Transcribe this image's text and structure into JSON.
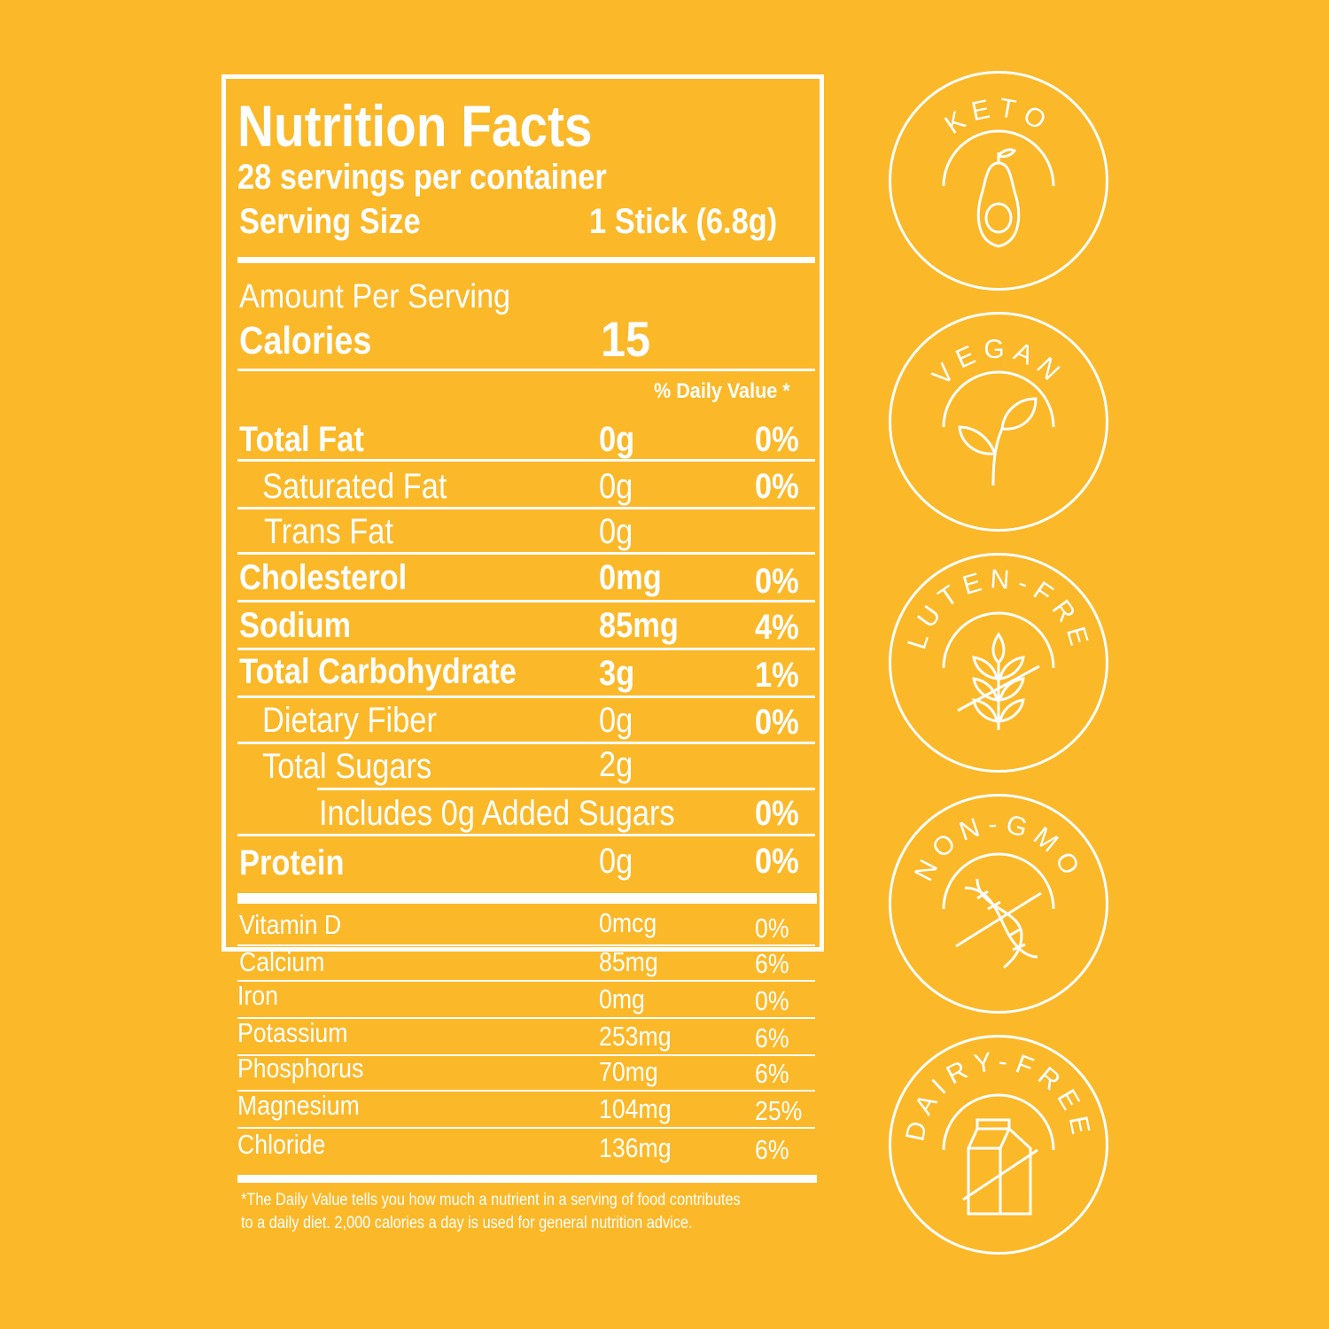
{
  "label": {
    "title": "Nutrition Facts",
    "servings": "28 servings per container",
    "serving_size_label": "Serving Size",
    "serving_size_value": "1 Stick (6.8g)",
    "amount_per_serving": "Amount Per Serving",
    "calories_label": "Calories",
    "calories_value": "15",
    "daily_value_header": "% Daily Value *",
    "nutrients": [
      {
        "name": "Total Fat",
        "amount": "0g",
        "dv": "0%"
      },
      {
        "name": "Saturated Fat",
        "amount": "0g",
        "dv": "0%"
      },
      {
        "name": "Trans Fat",
        "amount": "0g",
        "dv": ""
      },
      {
        "name": "Cholesterol",
        "amount": "0mg",
        "dv": "0%"
      },
      {
        "name": "Sodium",
        "amount": "85mg",
        "dv": "4%"
      },
      {
        "name": "Total Carbohydrate",
        "amount": "3g",
        "dv": "1%"
      },
      {
        "name": "Dietary Fiber",
        "amount": "0g",
        "dv": "0%"
      },
      {
        "name": "Total Sugars",
        "amount": "2g",
        "dv": ""
      },
      {
        "name": "Includes 0g Added Sugars",
        "amount": "",
        "dv": "0%"
      },
      {
        "name": "Protein",
        "amount": "0g",
        "dv": "0%"
      }
    ],
    "minerals": [
      {
        "name": "Vitamin D",
        "amount": "0mcg",
        "dv": "0%"
      },
      {
        "name": "Calcium",
        "amount": "85mg",
        "dv": "6%"
      },
      {
        "name": "Iron",
        "amount": "0mg",
        "dv": "0%"
      },
      {
        "name": "Potassium",
        "amount": "253mg",
        "dv": "6%"
      },
      {
        "name": "Phosphorus",
        "amount": "70mg",
        "dv": "6%"
      },
      {
        "name": "Magnesium",
        "amount": "104mg",
        "dv": "25%"
      },
      {
        "name": "Chloride",
        "amount": "136mg",
        "dv": "6%"
      }
    ],
    "footnote_line1": "*The Daily Value tells you how much a nutrient in a serving of food contributes",
    "footnote_line2": "to a daily diet. 2,000 calories a day is used for general nutrition advice."
  },
  "badges": [
    {
      "label": "KETO",
      "icon": "avocado-icon"
    },
    {
      "label": "VEGAN",
      "icon": "sprout-icon"
    },
    {
      "label": "GLUTEN-FREE",
      "icon": "wheat-crossed-icon"
    },
    {
      "label": "NON-GMO",
      "icon": "dna-crossed-icon"
    },
    {
      "label": "DAIRY-FREE",
      "icon": "milk-carton-crossed-icon"
    }
  ],
  "colors": {
    "background": "#FBB829",
    "foreground": "#FFFFFF"
  }
}
